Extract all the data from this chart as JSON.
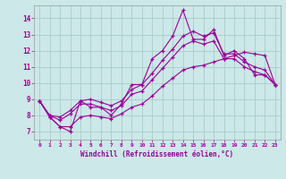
{
  "xlabel": "Windchill (Refroidissement éolien,°C)",
  "bg_color": "#cce8e8",
  "line_color": "#990099",
  "grid_color": "#aacccc",
  "x_ticks": [
    0,
    1,
    2,
    3,
    4,
    5,
    6,
    7,
    8,
    9,
    10,
    11,
    12,
    13,
    14,
    15,
    16,
    17,
    18,
    19,
    20,
    21,
    22,
    23
  ],
  "y_ticks": [
    7,
    8,
    9,
    10,
    11,
    12,
    13,
    14
  ],
  "ylim": [
    6.5,
    14.8
  ],
  "xlim": [
    -0.5,
    23.5
  ],
  "series_jagged": [
    8.9,
    7.9,
    7.3,
    7.0,
    8.9,
    8.5,
    8.5,
    8.0,
    8.7,
    9.9,
    9.9,
    11.5,
    12.0,
    12.9,
    14.5,
    12.7,
    12.7,
    13.3,
    11.7,
    12.0,
    11.5,
    10.5,
    10.5,
    9.9
  ],
  "series_upper": [
    8.9,
    8.0,
    7.9,
    8.3,
    8.9,
    9.0,
    8.8,
    8.6,
    8.9,
    9.6,
    9.9,
    10.6,
    11.4,
    12.1,
    12.9,
    13.2,
    12.9,
    13.1,
    11.8,
    11.8,
    11.3,
    11.0,
    10.8,
    9.9
  ],
  "series_middle": [
    8.9,
    8.0,
    7.7,
    8.1,
    8.7,
    8.7,
    8.5,
    8.3,
    8.6,
    9.3,
    9.5,
    10.2,
    10.9,
    11.6,
    12.3,
    12.6,
    12.4,
    12.6,
    11.5,
    11.5,
    11.0,
    10.7,
    10.5,
    9.9
  ],
  "series_lower": [
    8.9,
    7.9,
    7.3,
    7.3,
    7.9,
    8.0,
    7.9,
    7.8,
    8.1,
    8.5,
    8.7,
    9.2,
    9.8,
    10.3,
    10.8,
    11.0,
    11.1,
    11.3,
    11.5,
    11.7,
    11.9,
    11.8,
    11.7,
    9.9
  ]
}
